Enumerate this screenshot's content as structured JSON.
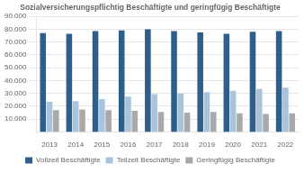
{
  "chart_data": {
    "type": "bar",
    "title": "Sozialversicherungspflichtig Beschäftigte und geringfügig Beschäftigte",
    "categories": [
      "2013",
      "2014",
      "2015",
      "2016",
      "2017",
      "2018",
      "2019",
      "2020",
      "2021",
      "2022"
    ],
    "series": [
      {
        "name": "Vollzeit Beschäftigte",
        "color": "#2E5F8A",
        "values": [
          77000,
          76500,
          78500,
          79000,
          80000,
          78500,
          77500,
          76500,
          78000,
          78500
        ]
      },
      {
        "name": "Teilzeit Beschäftigte",
        "color": "#A8C4DC",
        "values": [
          23500,
          24000,
          25500,
          27500,
          29500,
          30000,
          31000,
          32000,
          33500,
          34500
        ]
      },
      {
        "name": "Geringfügig Beschäftigte",
        "color": "#A9A9A9",
        "values": [
          17000,
          17500,
          17000,
          16500,
          15500,
          15000,
          15500,
          14500,
          14000,
          14500
        ]
      }
    ],
    "ylim": [
      0,
      90000
    ],
    "yticks": [
      {
        "value": 10000,
        "label": "10.000"
      },
      {
        "value": 20000,
        "label": "20.000"
      },
      {
        "value": 30000,
        "label": "30.000"
      },
      {
        "value": 40000,
        "label": "40.000"
      },
      {
        "value": 50000,
        "label": "50.000"
      },
      {
        "value": 60000,
        "label": "60.000"
      },
      {
        "value": 70000,
        "label": "70.000"
      },
      {
        "value": 80000,
        "label": "80.000"
      },
      {
        "value": 90000,
        "label": "90.000"
      }
    ],
    "grid": true,
    "legend": "bottom"
  }
}
